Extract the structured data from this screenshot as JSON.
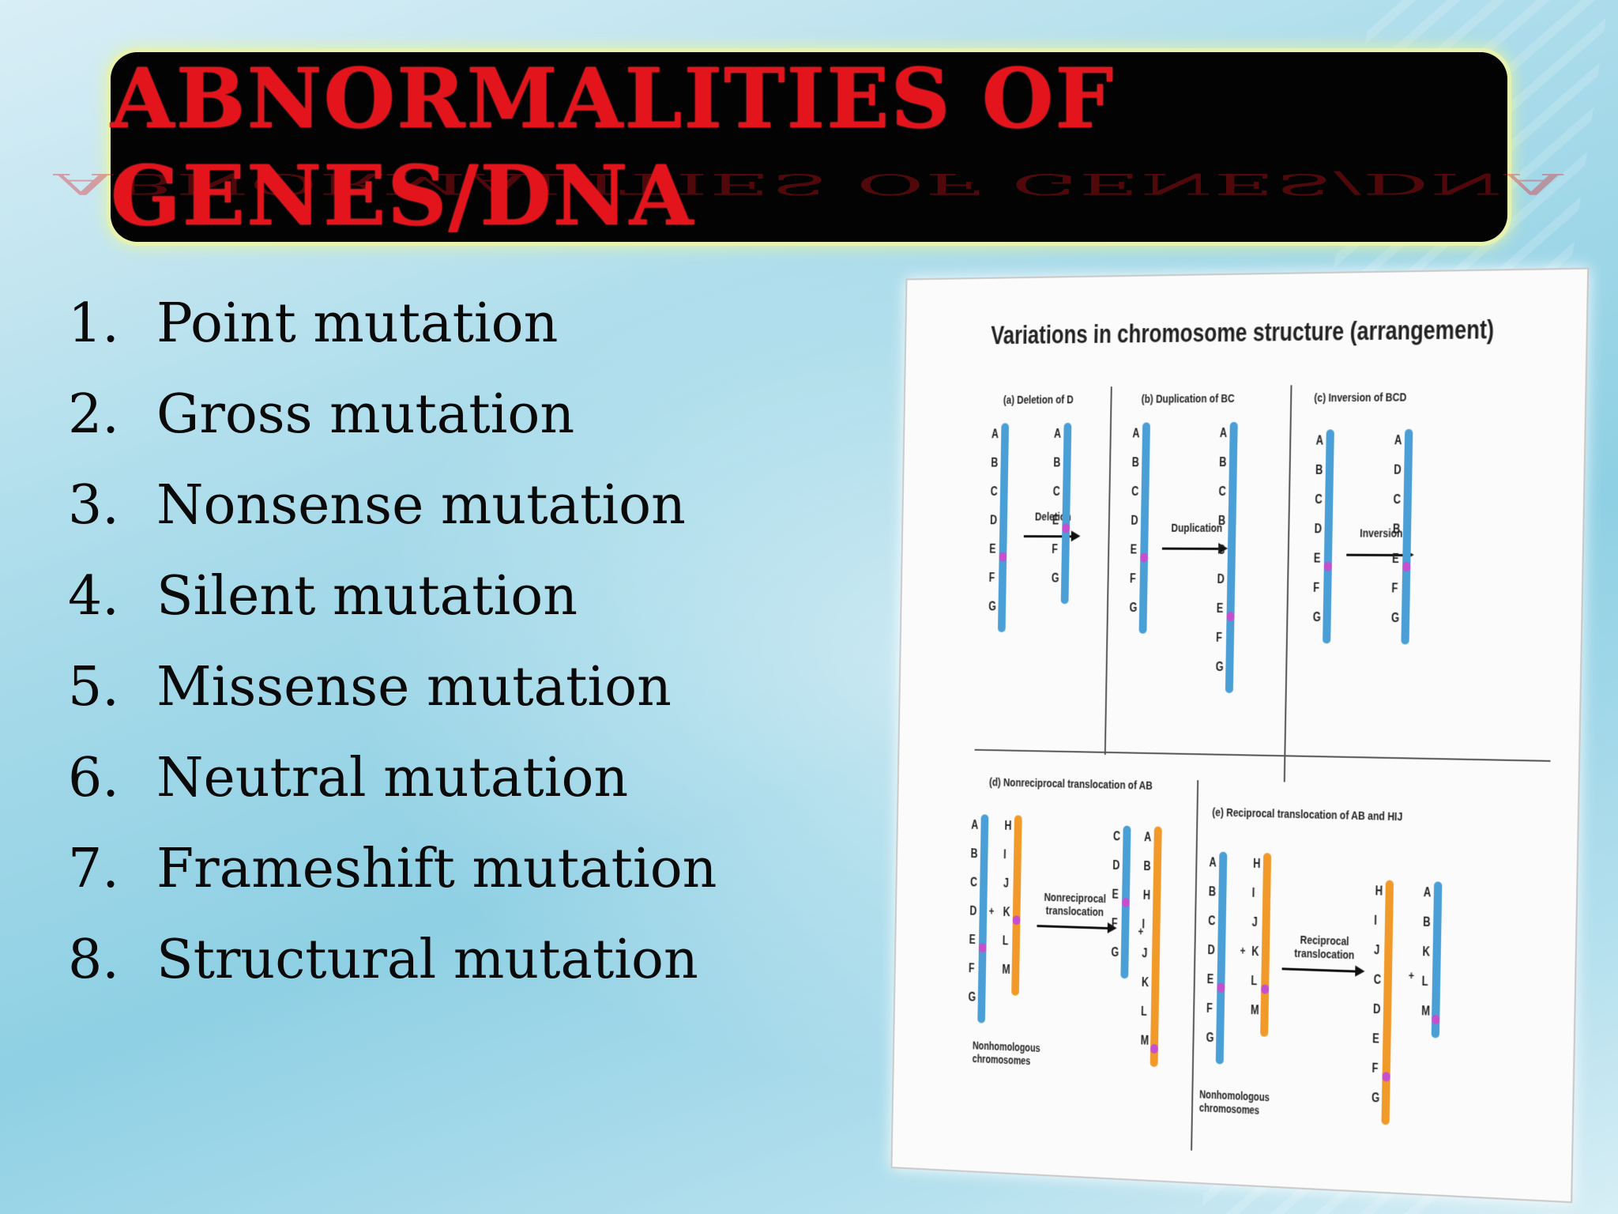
{
  "slide": {
    "title": "ABNORMALITIES OF GENES/DNA",
    "list": [
      {
        "num": "1.",
        "label": "Point mutation"
      },
      {
        "num": "2.",
        "label": "Gross mutation"
      },
      {
        "num": "3.",
        "label": "Nonsense mutation"
      },
      {
        "num": "4.",
        "label": "Silent mutation"
      },
      {
        "num": "5.",
        "label": "Missense mutation"
      },
      {
        "num": "6.",
        "label": "Neutral mutation"
      },
      {
        "num": "7.",
        "label": "Frameshift mutation"
      },
      {
        "num": "8.",
        "label": "Structural mutation"
      }
    ]
  },
  "figure": {
    "title": "Variations in chromosome structure (arrangement)",
    "panels": {
      "a": {
        "label": "(a) Deletion of D",
        "action": "Deletion",
        "before": [
          "A",
          "B",
          "C",
          "D",
          "E",
          "F",
          "G"
        ],
        "after": [
          "A",
          "B",
          "C",
          "E",
          "F",
          "G"
        ]
      },
      "b": {
        "label": "(b) Duplication of BC",
        "action": "Duplication",
        "before": [
          "A",
          "B",
          "C",
          "D",
          "E",
          "F",
          "G"
        ],
        "after": [
          "A",
          "B",
          "C",
          "B",
          "C",
          "D",
          "E",
          "F",
          "G"
        ]
      },
      "c": {
        "label": "(c) Inversion of BCD",
        "action": "Inversion",
        "before": [
          "A",
          "B",
          "C",
          "D",
          "E",
          "F",
          "G"
        ],
        "after": [
          "A",
          "D",
          "C",
          "B",
          "E",
          "F",
          "G"
        ]
      },
      "d": {
        "label": "(d) Nonreciprocal translocation of AB",
        "action_line1": "Nonreciprocal",
        "action_line2": "translocation",
        "chrom1": [
          "A",
          "B",
          "C",
          "D",
          "E",
          "F",
          "G"
        ],
        "chrom2": [
          "H",
          "I",
          "J",
          "K",
          "L",
          "M"
        ],
        "after1": [
          "C",
          "D",
          "E",
          "F",
          "G"
        ],
        "after2": [
          "A",
          "B",
          "H",
          "I",
          "J",
          "K",
          "L",
          "M"
        ],
        "note_line1": "Nonhomologous",
        "note_line2": "chromosomes",
        "plus": "+"
      },
      "e": {
        "label": "(e) Reciprocal translocation of AB and HIJ",
        "action_line1": "Reciprocal",
        "action_line2": "translocation",
        "chrom1": [
          "A",
          "B",
          "C",
          "D",
          "E",
          "F",
          "G"
        ],
        "chrom2": [
          "H",
          "I",
          "J",
          "K",
          "L",
          "M"
        ],
        "after1": [
          "H",
          "I",
          "J",
          "C",
          "D",
          "E",
          "F",
          "G"
        ],
        "after2": [
          "A",
          "B",
          "K",
          "L",
          "M"
        ],
        "note_line1": "Nonhomologous",
        "note_line2": "chromosomes",
        "plus": "+"
      }
    }
  }
}
